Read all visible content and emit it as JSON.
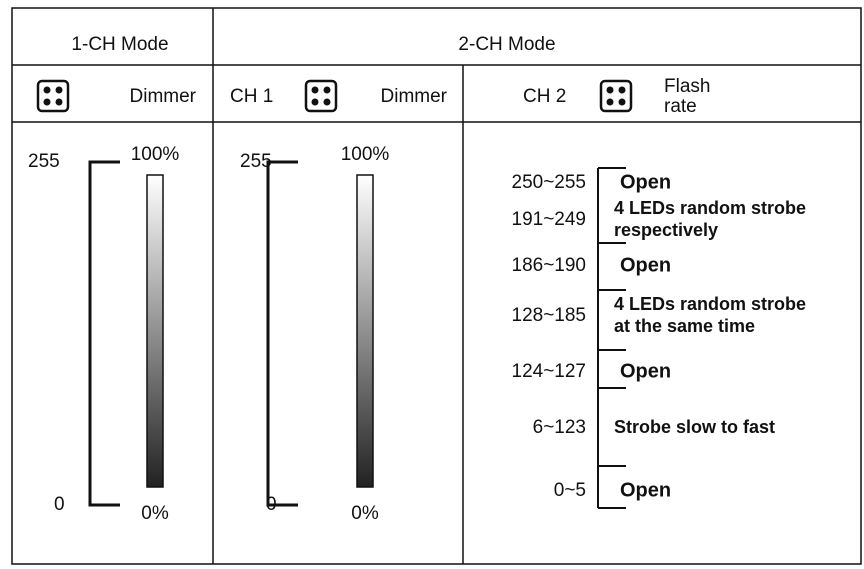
{
  "one_ch": {
    "title": "1-CH Mode",
    "label": "Dimmer",
    "max_value": "255",
    "min_value": "0",
    "max_pct": "100%",
    "min_pct": "0%"
  },
  "two_ch": {
    "title": "2-CH Mode",
    "ch1": {
      "name": "CH 1",
      "label": "Dimmer",
      "max_value": "255",
      "min_value": "0",
      "max_pct": "100%",
      "min_pct": "0%"
    },
    "ch2": {
      "name": "CH 2",
      "label": [
        "Flash",
        "rate"
      ],
      "ranges": [
        {
          "range": "250~255",
          "desc": [
            "Open"
          ]
        },
        {
          "range": "191~249",
          "desc": [
            "4 LEDs random strobe",
            "respectively"
          ]
        },
        {
          "range": "186~190",
          "desc": [
            "Open"
          ]
        },
        {
          "range": "128~185",
          "desc": [
            "4 LEDs random strobe",
            "at the same time"
          ]
        },
        {
          "range": "124~127",
          "desc": [
            "Open"
          ]
        },
        {
          "range": "6~123",
          "desc": [
            "Strobe slow to fast"
          ]
        },
        {
          "range": "0~5",
          "desc": [
            "Open"
          ]
        }
      ]
    }
  }
}
